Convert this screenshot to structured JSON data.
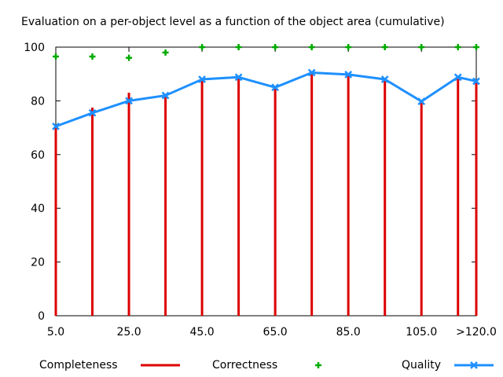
{
  "chart_data": {
    "type": "bar",
    "title": "Evaluation on a per-object level as a function of the object area (cumulative)",
    "xlabel": "",
    "ylabel": "",
    "x": [
      5,
      15,
      25,
      35,
      45,
      55,
      65,
      75,
      85,
      95,
      105,
      115,
      120
    ],
    "xlim": [
      5,
      120
    ],
    "xticks": [
      5,
      25,
      45,
      65,
      85,
      105,
      120
    ],
    "xtick_labels": [
      "5.0",
      "25.0",
      "45.0",
      "65.0",
      "85.0",
      "105.0",
      ">120.0"
    ],
    "ylim": [
      0,
      100
    ],
    "yticks": [
      0,
      20,
      40,
      60,
      80,
      100
    ],
    "ytick_labels": [
      "0",
      "20",
      "40",
      "60",
      "80",
      "100"
    ],
    "grid": false,
    "legend_position": "bottom",
    "series": [
      {
        "name": "Completeness",
        "kind": "impulse",
        "color": "#dd0000",
        "values": [
          71,
          77.5,
          83,
          82,
          88.5,
          89,
          85.5,
          91,
          90,
          88.5,
          79.5,
          89,
          87.5
        ]
      },
      {
        "name": "Correctness",
        "kind": "points",
        "marker": "plus",
        "color": "#00aa00",
        "values": [
          96.5,
          96.5,
          96,
          98,
          100,
          100,
          100,
          100,
          100,
          100,
          100,
          100,
          100
        ]
      },
      {
        "name": "Quality",
        "kind": "linespoints",
        "marker": "x",
        "color": "#1e90ff",
        "values": [
          70.5,
          75.5,
          80,
          82,
          88,
          88.8,
          85,
          90.5,
          89.8,
          88,
          79.8,
          88.8,
          87.3
        ]
      }
    ]
  }
}
